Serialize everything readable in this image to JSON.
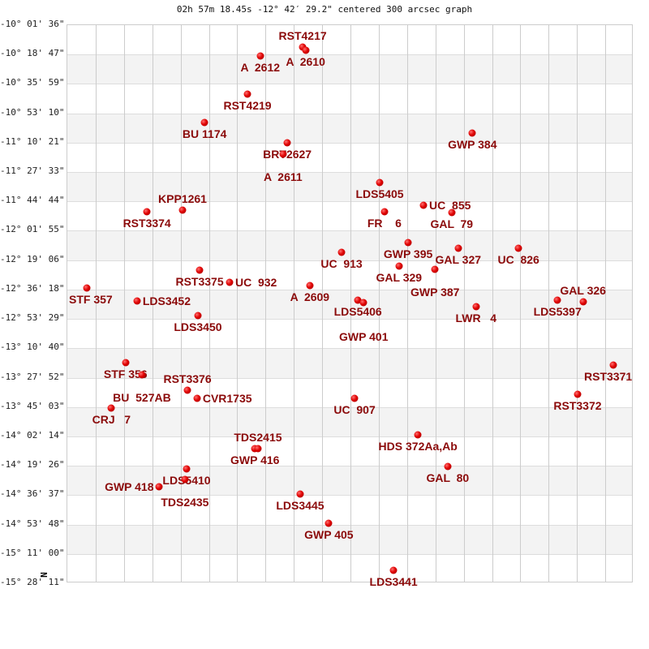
{
  "chart_data": {
    "type": "scatter",
    "title": "02h 57m 18.45s -12° 42′ 29.2\" centered 300 arcsec graph",
    "north_label": "N",
    "grid": true,
    "x_grid_columns": 20,
    "y_grid_rows": 19,
    "y_tick_labels": [
      "-10° 01' 36\"",
      "-10° 18' 47\"",
      "-10° 35' 59\"",
      "-10° 53' 10\"",
      "-11° 10' 21\"",
      "-11° 27' 33\"",
      "-11° 44' 44\"",
      "-12° 01' 55\"",
      "-12° 19' 06\"",
      "-12° 36' 18\"",
      "-12° 53' 29\"",
      "-13° 10' 40\"",
      "-13° 27' 52\"",
      "-13° 45' 03\"",
      "-14° 02' 14\"",
      "-14° 19' 26\"",
      "-14° 36' 37\"",
      "-14° 53' 48\"",
      "-15° 11' 00\"",
      "-15° 28' 11\""
    ],
    "point_color": "#dd0000",
    "label_color": "#8b0a0a",
    "points": [
      {
        "label": "A  2612",
        "x": 6.82,
        "y": 1.05
      },
      {
        "label": "RST4217",
        "x": 8.31,
        "y": 0.75
      },
      {
        "label": "A  2610",
        "x": 8.42,
        "y": 0.86
      },
      {
        "label": "RST4219",
        "x": 6.36,
        "y": 2.35
      },
      {
        "label": "BU 1174",
        "x": 4.84,
        "y": 3.31
      },
      {
        "label": "BRT2627",
        "x": 7.77,
        "y": 4.0
      },
      {
        "label": "A  2611",
        "x": 7.62,
        "y": 4.39
      },
      {
        "label": "GWP 384",
        "x": 14.3,
        "y": 3.67
      },
      {
        "label": "LDS5405",
        "x": 11.03,
        "y": 5.36
      },
      {
        "label": "FR    6",
        "x": 11.2,
        "y": 6.35
      },
      {
        "label": "UC  855",
        "x": 12.58,
        "y": 6.13
      },
      {
        "label": "GAL  79",
        "x": 13.58,
        "y": 6.38
      },
      {
        "label": "RST3374",
        "x": 2.81,
        "y": 6.35
      },
      {
        "label": "KPP1261",
        "x": 4.07,
        "y": 6.3
      },
      {
        "label": "GWP 395",
        "x": 12.03,
        "y": 7.4
      },
      {
        "label": "UC  913",
        "x": 9.68,
        "y": 7.73
      },
      {
        "label": "GAL 327",
        "x": 13.81,
        "y": 7.59
      },
      {
        "label": "UC  826",
        "x": 15.93,
        "y": 7.59
      },
      {
        "label": "GAL 329",
        "x": 11.72,
        "y": 8.2
      },
      {
        "label": "GWP 387",
        "x": 12.98,
        "y": 8.31
      },
      {
        "label": "RST3375",
        "x": 4.67,
        "y": 8.34
      },
      {
        "label": "UC  932",
        "x": 5.73,
        "y": 8.75
      },
      {
        "label": "A  2609",
        "x": 8.57,
        "y": 8.86
      },
      {
        "label": "STF 357",
        "x": 0.69,
        "y": 8.95
      },
      {
        "label": "LDS3452",
        "x": 2.46,
        "y": 9.39
      },
      {
        "label": "LDS5406",
        "x": 10.26,
        "y": 9.36
      },
      {
        "label": "GWP 401",
        "x": 10.46,
        "y": 9.44
      },
      {
        "label": "LWR   4",
        "x": 14.44,
        "y": 9.58
      },
      {
        "label": "LDS5397",
        "x": 17.31,
        "y": 9.36
      },
      {
        "label": "GAL 326",
        "x": 18.22,
        "y": 9.42
      },
      {
        "label": "LDS3450",
        "x": 4.61,
        "y": 9.89
      },
      {
        "label": "STF 356",
        "x": 2.06,
        "y": 11.49
      },
      {
        "label": "BU  527AB",
        "x": 2.64,
        "y": 11.9
      },
      {
        "label": "RST3371",
        "x": 19.28,
        "y": 11.57
      },
      {
        "label": "RST3376",
        "x": 4.24,
        "y": 12.43
      },
      {
        "label": "CVR1735",
        "x": 4.58,
        "y": 12.7
      },
      {
        "label": "RST3372",
        "x": 18.02,
        "y": 12.57
      },
      {
        "label": "UC  907",
        "x": 10.14,
        "y": 12.7
      },
      {
        "label": "CRJ   7",
        "x": 1.55,
        "y": 13.03
      },
      {
        "label": "HDS 372Aa,Ab",
        "x": 12.38,
        "y": 13.95
      },
      {
        "label": "GWP 416",
        "x": 6.62,
        "y": 14.42
      },
      {
        "label": "TDS2415",
        "x": 6.73,
        "y": 14.42
      },
      {
        "label": "LDS5410",
        "x": 4.21,
        "y": 15.11
      },
      {
        "label": "TDS2435",
        "x": 4.15,
        "y": 15.47
      },
      {
        "label": "GWP 418",
        "x": 3.24,
        "y": 15.71
      },
      {
        "label": "GAL  80",
        "x": 13.44,
        "y": 15.02
      },
      {
        "label": "LDS3445",
        "x": 8.22,
        "y": 15.96
      },
      {
        "label": "GWP 405",
        "x": 9.23,
        "y": 16.96
      },
      {
        "label": "LDS3441",
        "x": 11.52,
        "y": 18.56
      }
    ]
  }
}
